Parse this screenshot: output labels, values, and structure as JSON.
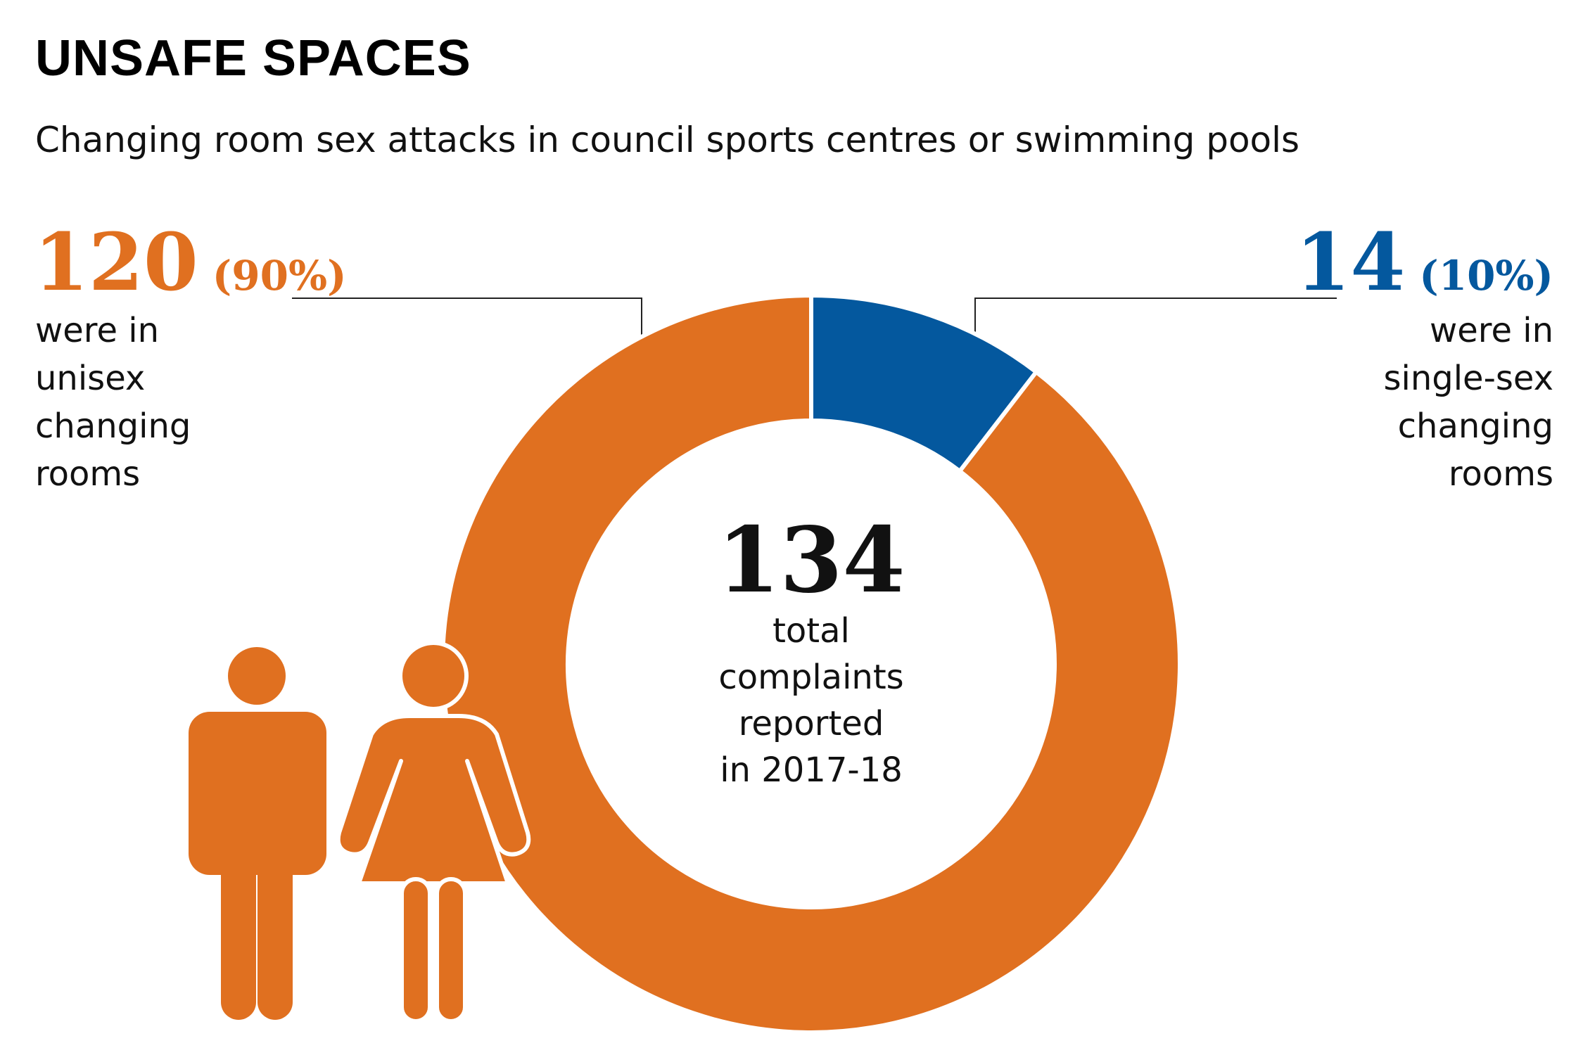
{
  "title": "UNSAFE SPACES",
  "subtitle": "Changing room sex attacks in council sports centres or swimming pools",
  "colors": {
    "unisex": "#E07020",
    "single_sex": "#04589E",
    "text": "#111111"
  },
  "icons": [
    "man-icon",
    "woman-icon"
  ],
  "chart_data": {
    "type": "pie",
    "style": "donut",
    "total": 134,
    "total_label_lines": [
      "total",
      "complaints",
      "reported",
      "in 2017-18"
    ],
    "slices": [
      {
        "value": 14,
        "percent_label": "(10%)",
        "description_lines": [
          "were in",
          "single-sex",
          "changing",
          "rooms"
        ],
        "color": "#04589E"
      },
      {
        "value": 120,
        "percent_label": "(90%)",
        "description_lines": [
          "were in",
          "unisex",
          "changing",
          "rooms"
        ],
        "color": "#E07020"
      }
    ]
  }
}
